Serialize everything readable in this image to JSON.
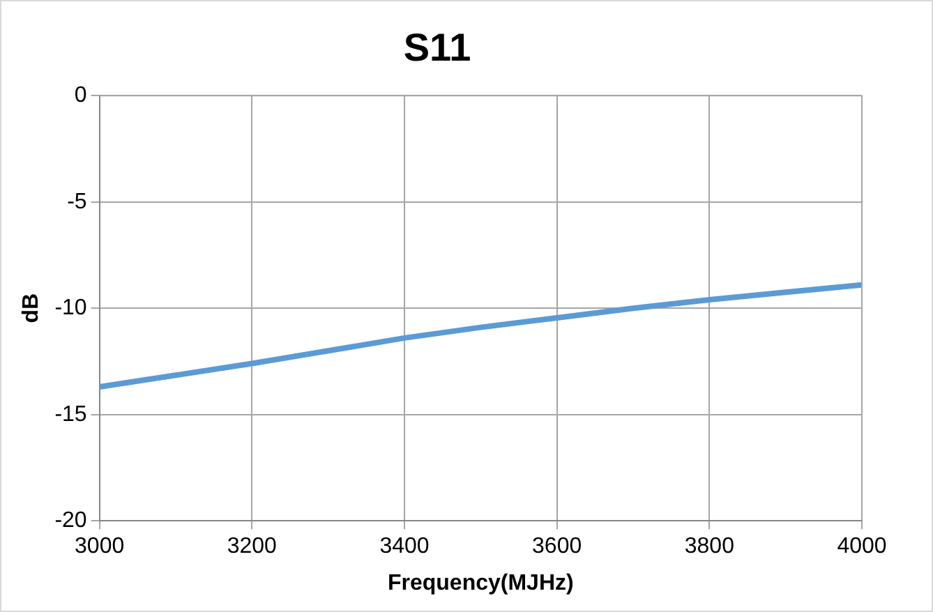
{
  "chart_data": {
    "type": "line",
    "title": "S11",
    "xlabel": "Frequency(MJHz)",
    "ylabel": "dB",
    "x": [
      3000,
      3100,
      3200,
      3300,
      3400,
      3500,
      3600,
      3700,
      3800,
      3900,
      4000
    ],
    "series": [
      {
        "color": "#5b9bd5",
        "values": [
          -13.7,
          -13.15,
          -12.6,
          -12.0,
          -11.4,
          -10.9,
          -10.45,
          -10.0,
          -9.6,
          -9.25,
          -8.9
        ]
      }
    ],
    "xlim": [
      3000,
      4000
    ],
    "xticks": [
      3000,
      3200,
      3400,
      3600,
      3800,
      4000
    ],
    "ylim": [
      -20,
      0
    ],
    "yticks": [
      -20,
      -15,
      -10,
      -5,
      0
    ],
    "grid": true,
    "legend": false,
    "marker": "none",
    "line_style": "solid"
  }
}
